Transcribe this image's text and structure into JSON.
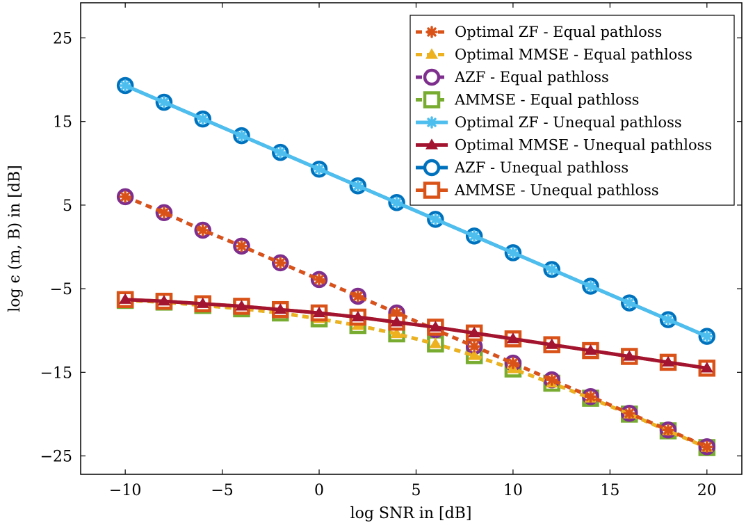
{
  "chart_data": {
    "type": "line",
    "xlabel": "log SNR in [dB]",
    "ylabel": "log ϵ (m, B) in [dB]",
    "xlim": [
      -12.3,
      21.8
    ],
    "ylim": [
      -27.2,
      29.2
    ],
    "xticks": [
      -10,
      -5,
      0,
      5,
      10,
      15,
      20
    ],
    "yticks": [
      -25,
      -15,
      -5,
      5,
      15,
      25
    ],
    "xtick_labels": [
      "−10",
      "−5",
      "0",
      "5",
      "10",
      "15",
      "20"
    ],
    "ytick_labels": [
      "−25",
      "−15",
      "−5",
      "5",
      "15",
      "25"
    ],
    "grid": false,
    "legend_position": "top-right",
    "x": [
      -10,
      -8,
      -6,
      -4,
      -2,
      0,
      2,
      4,
      6,
      8,
      10,
      12,
      14,
      16,
      18,
      20
    ],
    "series": [
      {
        "name": "Optimal ZF - Equal pathloss",
        "color": "#D95319",
        "style": "dashed",
        "marker": "asterisk",
        "values": [
          6.0,
          4.1,
          2.0,
          0.1,
          -1.9,
          -3.9,
          -5.9,
          -7.9,
          -9.9,
          -11.9,
          -13.9,
          -15.9,
          -17.9,
          -19.9,
          -21.9,
          -23.9
        ]
      },
      {
        "name": "Optimal MMSE - Equal pathloss",
        "color": "#EDB120",
        "style": "dashed",
        "marker": "triangle",
        "values": [
          -6.4,
          -6.6,
          -7.0,
          -7.4,
          -7.9,
          -8.6,
          -9.4,
          -10.4,
          -11.6,
          -13.0,
          -14.6,
          -16.3,
          -18.1,
          -20.0,
          -22.0,
          -24.0
        ]
      },
      {
        "name": "AZF - Equal pathloss",
        "color": "#7E2F8E",
        "style": "dashed",
        "marker": "circle",
        "values": [
          6.0,
          4.1,
          2.0,
          0.1,
          -1.9,
          -3.9,
          -5.9,
          -7.9,
          -9.9,
          -11.9,
          -13.9,
          -15.9,
          -17.9,
          -19.9,
          -21.9,
          -23.9
        ]
      },
      {
        "name": "AMMSE - Equal pathloss",
        "color": "#77AC30",
        "style": "dashed",
        "marker": "square",
        "values": [
          -6.4,
          -6.6,
          -7.0,
          -7.4,
          -7.9,
          -8.6,
          -9.4,
          -10.4,
          -11.6,
          -13.0,
          -14.6,
          -16.3,
          -18.1,
          -20.0,
          -22.0,
          -24.0
        ]
      },
      {
        "name": "Optimal ZF - Unequal pathloss",
        "color": "#4DBEEE",
        "style": "solid",
        "marker": "asterisk",
        "values": [
          19.3,
          17.3,
          15.3,
          13.3,
          11.3,
          9.3,
          7.3,
          5.3,
          3.3,
          1.3,
          -0.7,
          -2.7,
          -4.7,
          -6.7,
          -8.7,
          -10.7
        ]
      },
      {
        "name": "Optimal MMSE - Unequal pathloss",
        "color": "#A2142F",
        "style": "solid",
        "marker": "triangle",
        "values": [
          -6.3,
          -6.5,
          -6.8,
          -7.1,
          -7.5,
          -7.9,
          -8.4,
          -9.0,
          -9.6,
          -10.3,
          -11.0,
          -11.7,
          -12.4,
          -13.1,
          -13.8,
          -14.5
        ]
      },
      {
        "name": "AZF - Unequal pathloss",
        "color": "#0072BD",
        "style": "solid",
        "marker": "circle",
        "values": [
          19.3,
          17.3,
          15.3,
          13.3,
          11.3,
          9.3,
          7.3,
          5.3,
          3.3,
          1.3,
          -0.7,
          -2.7,
          -4.7,
          -6.7,
          -8.7,
          -10.7
        ]
      },
      {
        "name": "AMMSE - Unequal pathloss",
        "color": "#D95319",
        "style": "solid",
        "marker": "square",
        "values": [
          -6.3,
          -6.5,
          -6.8,
          -7.1,
          -7.5,
          -7.9,
          -8.4,
          -9.0,
          -9.6,
          -10.3,
          -11.0,
          -11.7,
          -12.4,
          -13.1,
          -13.8,
          -14.5
        ]
      }
    ]
  }
}
